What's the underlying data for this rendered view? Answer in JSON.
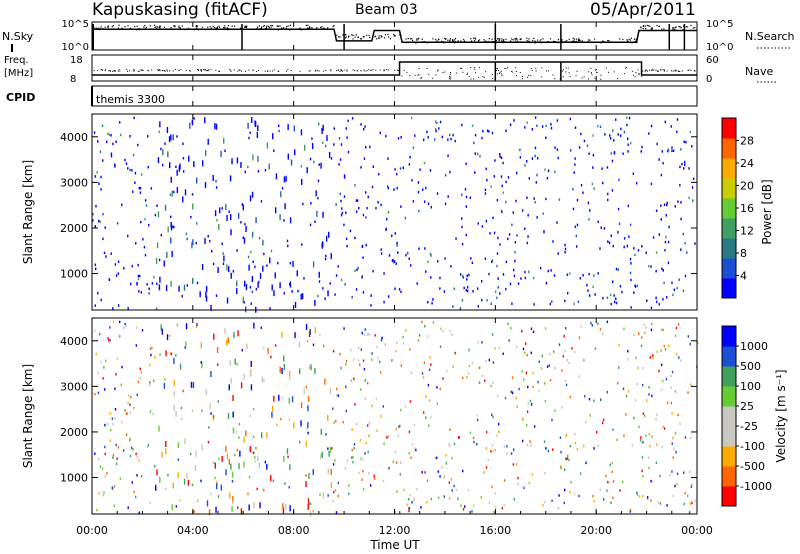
{
  "header": {
    "station": "Kapuskasing (fitACF)",
    "beam": "Beam 03",
    "date": "05/Apr/2011"
  },
  "strip_labels": {
    "nsky": "N.Sky",
    "nsky_ticks": [
      "10^5",
      "10^0"
    ],
    "nsearch": "N.Search",
    "nsearch_ticks": [
      "10^5",
      "10^0"
    ],
    "freq_line1": "Freq.",
    "freq_line2": "[MHz]",
    "freq_ticks": [
      "18",
      "8"
    ],
    "nave": "Nave",
    "nave_ticks": [
      "60",
      "0"
    ],
    "cpid": "CPID",
    "cpid_mode": "themis 3300"
  },
  "colors": {
    "scale": [
      "#0000ff",
      "#1a4fd6",
      "#2a7a86",
      "#3fa060",
      "#66cc33",
      "#cccc00",
      "#ffaa00",
      "#ff6600",
      "#ff0000"
    ],
    "ground_scatter": "#c8c8c0"
  },
  "chart_data": [
    {
      "type": "heatmap",
      "parameter": "Power",
      "ylabel": "Slant Range [km]",
      "yticks": [
        "1000",
        "2000",
        "3000",
        "4000"
      ],
      "ylim": [
        200,
        4500
      ],
      "xlim_hours": [
        0,
        24
      ],
      "colorbar_label": "Power [dB]",
      "colorbar_ticks": [
        "4",
        "8",
        "12",
        "16",
        "20",
        "24",
        "28"
      ],
      "colorbar_range": [
        0,
        30
      ]
    },
    {
      "type": "heatmap",
      "parameter": "Velocity",
      "ylabel": "Slant Range [km]",
      "yticks": [
        "1000",
        "2000",
        "3000",
        "4000"
      ],
      "ylim": [
        200,
        4500
      ],
      "xlim_hours": [
        0,
        24
      ],
      "colorbar_label": "Velocity [m s⁻¹]",
      "colorbar_ticks": [
        "1000",
        "500",
        "100",
        "25",
        "-25",
        "-100",
        "-500",
        "-1000"
      ]
    }
  ],
  "x_axis": {
    "label": "Time UT",
    "ticks": [
      "00:00",
      "04:00",
      "08:00",
      "12:00",
      "16:00",
      "20:00",
      "00:00"
    ]
  },
  "echo_regions": [
    {
      "t0": 0.0,
      "t1": 1.0,
      "r0": 1050,
      "r1": 1500,
      "pw": 0.55,
      "vel": 0.45,
      "dens": 0.85
    },
    {
      "t0": 1.9,
      "t1": 2.4,
      "r0": 750,
      "r1": 1050,
      "pw": 0.7,
      "vel": 0.25,
      "dens": 0.6
    },
    {
      "t0": 3.5,
      "t1": 4.8,
      "r0": 1250,
      "r1": 1900,
      "pw": 0.55,
      "vel": 0.2,
      "dens": 0.7
    },
    {
      "t0": 7.7,
      "t1": 8.4,
      "r0": 1250,
      "r1": 1900,
      "pw": 0.6,
      "vel": 0.65,
      "dens": 0.7
    },
    {
      "t0": 9.6,
      "t1": 10.3,
      "r0": 1250,
      "r1": 2300,
      "pw": 0.75,
      "vel": 0.7,
      "dens": 0.8
    },
    {
      "t0": 10.8,
      "t1": 11.2,
      "r0": 1200,
      "r1": 2050,
      "pw": 0.7,
      "vel": 0.7,
      "dens": 0.7
    },
    {
      "t0": 13.9,
      "t1": 17.5,
      "r0": 2550,
      "r1": 2950,
      "pw": 0.1,
      "vel": 0.5,
      "dens": 0.55
    },
    {
      "t0": 17.5,
      "t1": 19.5,
      "r0": 2300,
      "r1": 2700,
      "pw": 0.1,
      "vel": 0.5,
      "dens": 0.45
    },
    {
      "t0": 19.8,
      "t1": 21.5,
      "r0": 2000,
      "r1": 2850,
      "pw": 0.15,
      "vel": 0.2,
      "dens": 0.75
    },
    {
      "t0": 21.5,
      "t1": 24.0,
      "r0": 1000,
      "r1": 1550,
      "pw": 0.45,
      "vel": 0.5,
      "dens": 0.9
    },
    {
      "t0": 9.5,
      "t1": 22.0,
      "r0": 220,
      "r1": 420,
      "pw": 0.5,
      "vel": 0.5,
      "dens": 0.5
    }
  ]
}
